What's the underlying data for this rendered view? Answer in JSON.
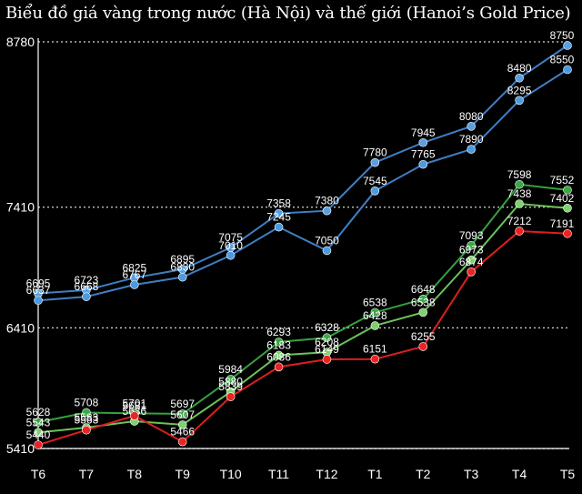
{
  "chart_data": {
    "type": "line",
    "title": "Biểu đồ giá vàng trong nước (Hà Nội) và thế giới (Hanoi’s Gold Price)",
    "categories": [
      "T6",
      "T7",
      "T8",
      "T9",
      "T10",
      "T11",
      "T12",
      "T1",
      "T2",
      "T3",
      "T4",
      "T5"
    ],
    "ylim": [
      5410,
      8780
    ],
    "yticks": [
      5410,
      6410,
      7410,
      8780
    ],
    "grid": true,
    "series": [
      {
        "color": "#5aa0e0",
        "line_color": "#3f7fc4",
        "values": [
          6695,
          6723,
          6825,
          6895,
          7075,
          7358,
          7380,
          7780,
          7945,
          8080,
          8480,
          8750
        ]
      },
      {
        "color": "#4c9be0",
        "line_color": "#3f7fc4",
        "values": [
          6637,
          6668,
          6767,
          6830,
          7010,
          7245,
          7050,
          7545,
          7765,
          7890,
          8295,
          8550
        ]
      },
      {
        "color": "#3aa845",
        "line_color": "#37a040",
        "values": [
          5628,
          5708,
          5701,
          5697,
          5984,
          6293,
          6328,
          6538,
          6648,
          7093,
          7598,
          7552
        ]
      },
      {
        "color": "#7ed070",
        "line_color": "#6cc25a",
        "values": [
          5543,
          5583,
          5636,
          5607,
          5880,
          6183,
          6208,
          6428,
          6538,
          6973,
          7438,
          7402
        ]
      },
      {
        "color": "#ee2222",
        "line_color": "#dd1f1f",
        "values": [
          5440,
          5563,
          5681,
          5466,
          5839,
          6086,
          6149,
          6151,
          6255,
          6874,
          7212,
          7191
        ]
      }
    ]
  }
}
